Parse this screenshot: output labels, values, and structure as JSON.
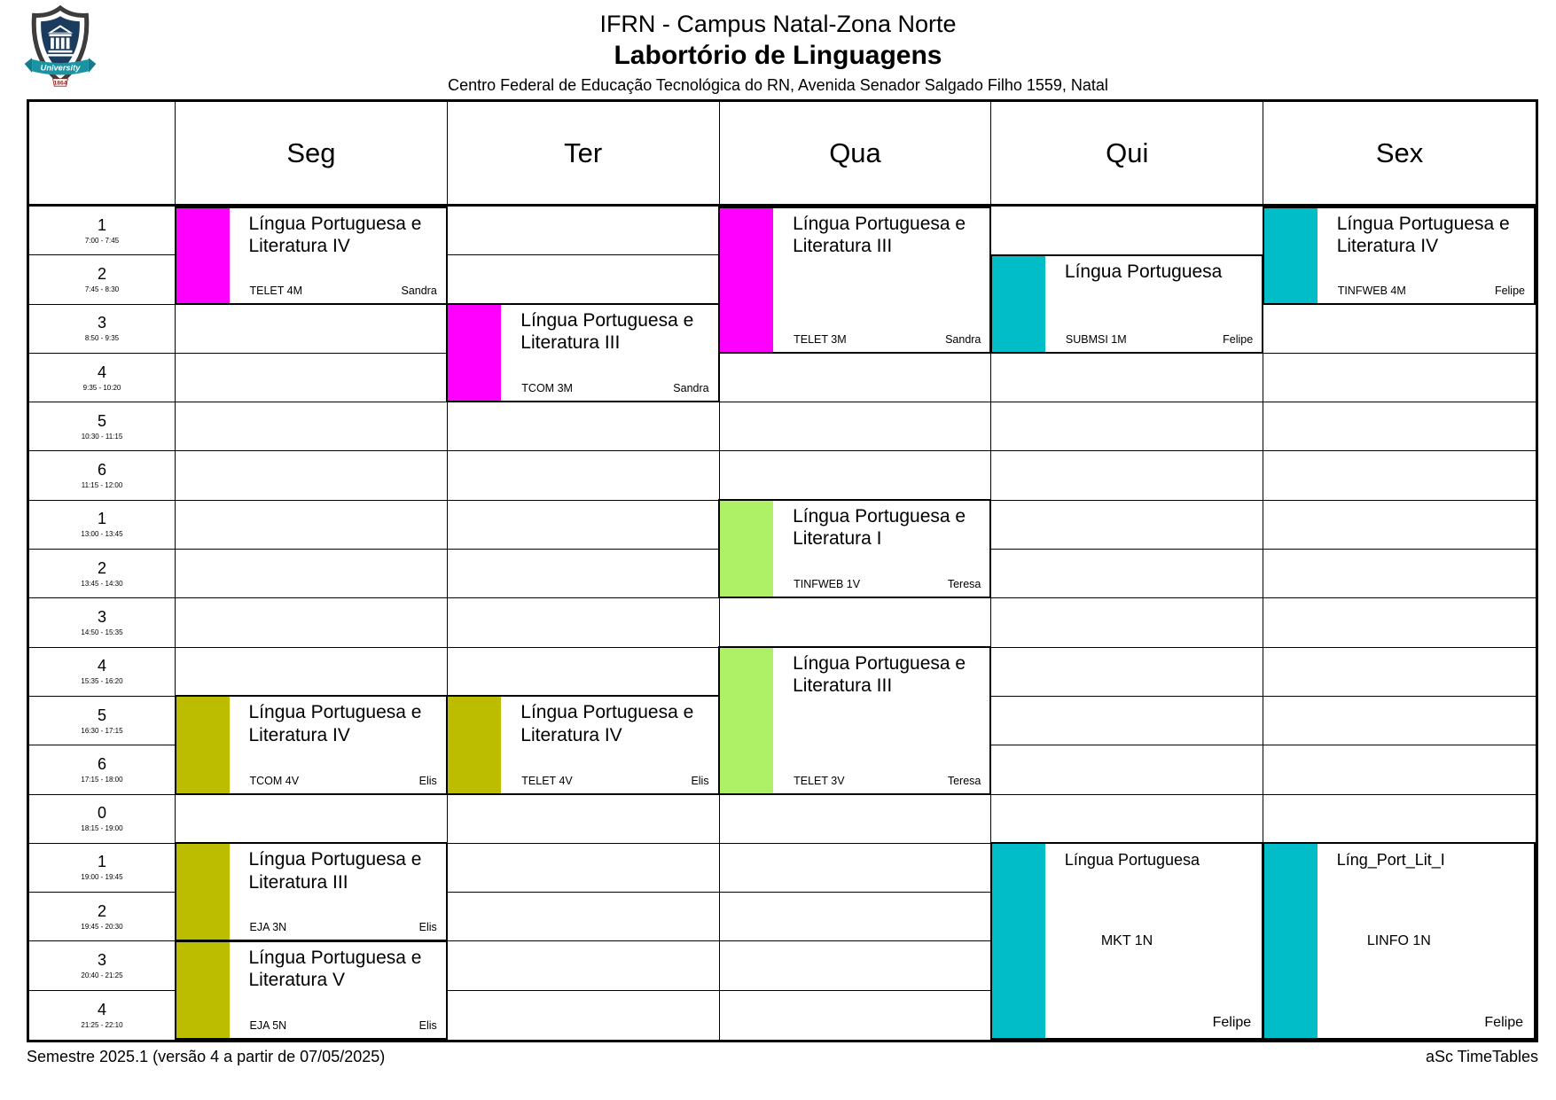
{
  "header": {
    "institution": "IFRN - Campus Natal-Zona Norte",
    "room": "Labortório de Linguagens",
    "address": "Centro Federal de Educação Tecnológica do RN, Avenida Senador Salgado Filho 1559, Natal",
    "logo": {
      "banner": "University",
      "year": "1864"
    }
  },
  "days": [
    "Seg",
    "Ter",
    "Qua",
    "Qui",
    "Sex"
  ],
  "periods": [
    {
      "num": "1",
      "time": "7:00 - 7:45"
    },
    {
      "num": "2",
      "time": "7:45 - 8:30"
    },
    {
      "num": "3",
      "time": "8:50 - 9:35"
    },
    {
      "num": "4",
      "time": "9:35 - 10:20"
    },
    {
      "num": "5",
      "time": "10:30 - 11:15"
    },
    {
      "num": "6",
      "time": "11:15 - 12:00"
    },
    {
      "num": "1",
      "time": "13:00 - 13:45"
    },
    {
      "num": "2",
      "time": "13:45 - 14:30"
    },
    {
      "num": "3",
      "time": "14:50 - 15:35"
    },
    {
      "num": "4",
      "time": "15:35 - 16:20"
    },
    {
      "num": "5",
      "time": "16:30 - 17:15"
    },
    {
      "num": "6",
      "time": "17:15 - 18:00"
    },
    {
      "num": "0",
      "time": "18:15 - 19:00"
    },
    {
      "num": "1",
      "time": "19:00 - 19:45"
    },
    {
      "num": "2",
      "time": "19:45 - 20:30"
    },
    {
      "num": "3",
      "time": "20:40 - 21:25"
    },
    {
      "num": "4",
      "time": "21:25 - 22:10"
    }
  ],
  "colors": {
    "magenta": "#ff00ff",
    "teal": "#00bdc7",
    "green": "#aef066",
    "olive": "#bdbd00",
    "logo_navy": "#1c3c5e",
    "logo_teal": "#1a93a3",
    "logo_year_red": "#a02020"
  },
  "blocks": [
    {
      "day": 0,
      "row": 0,
      "span": 2,
      "color": "magenta",
      "title": "Língua Portuguesa e Literatura IV",
      "code": "TELET 4M",
      "teacher": "Sandra",
      "variant": "standard"
    },
    {
      "day": 1,
      "row": 2,
      "span": 2,
      "color": "magenta",
      "title": "Língua Portuguesa e Literatura III",
      "code": "TCOM 3M",
      "teacher": "Sandra",
      "variant": "standard"
    },
    {
      "day": 2,
      "row": 0,
      "span": 3,
      "color": "magenta",
      "title": "Língua Portuguesa e Literatura III",
      "code": "TELET 3M",
      "teacher": "Sandra",
      "variant": "standard"
    },
    {
      "day": 3,
      "row": 1,
      "span": 2,
      "color": "teal",
      "title": "Língua Portuguesa",
      "code": "SUBMSI 1M",
      "teacher": "Felipe",
      "variant": "standard"
    },
    {
      "day": 4,
      "row": 0,
      "span": 2,
      "color": "teal",
      "title": "Língua Portuguesa e Literatura IV",
      "code": "TINFWEB 4M",
      "teacher": "Felipe",
      "variant": "standard"
    },
    {
      "day": 2,
      "row": 6,
      "span": 2,
      "color": "green",
      "title": "Língua Portuguesa e Literatura I",
      "code": "TINFWEB 1V",
      "teacher": "Teresa",
      "variant": "standard"
    },
    {
      "day": 2,
      "row": 9,
      "span": 3,
      "color": "green",
      "title": "Língua Portuguesa e Literatura III",
      "code": "TELET 3V",
      "teacher": "Teresa",
      "variant": "standard"
    },
    {
      "day": 0,
      "row": 10,
      "span": 2,
      "color": "olive",
      "title": "Língua Portuguesa e Literatura IV",
      "code": "TCOM 4V",
      "teacher": "Elis",
      "variant": "standard"
    },
    {
      "day": 1,
      "row": 10,
      "span": 2,
      "color": "olive",
      "title": "Língua Portuguesa e Literatura IV",
      "code": "TELET 4V",
      "teacher": "Elis",
      "variant": "standard"
    },
    {
      "day": 0,
      "row": 13,
      "span": 2,
      "color": "olive",
      "title": "Língua Portuguesa e Literatura III",
      "code": "EJA 3N",
      "teacher": "Elis",
      "variant": "standard"
    },
    {
      "day": 0,
      "row": 15,
      "span": 2,
      "color": "olive",
      "title": "Língua Portuguesa e Literatura V",
      "code": "EJA 5N",
      "teacher": "Elis",
      "variant": "standard"
    },
    {
      "day": 3,
      "row": 13,
      "span": 4,
      "color": "teal",
      "title": "Língua Portuguesa",
      "code": "MKT 1N",
      "teacher": "Felipe",
      "variant": "big"
    },
    {
      "day": 4,
      "row": 13,
      "span": 4,
      "color": "teal",
      "title": "Líng_Port_Lit_I",
      "code": "LINFO 1N",
      "teacher": "Felipe",
      "variant": "big"
    }
  ],
  "footer": {
    "left": "Semestre 2025.1 (versão 4 a partir de 07/05/2025)",
    "right": "aSc TimeTables"
  }
}
